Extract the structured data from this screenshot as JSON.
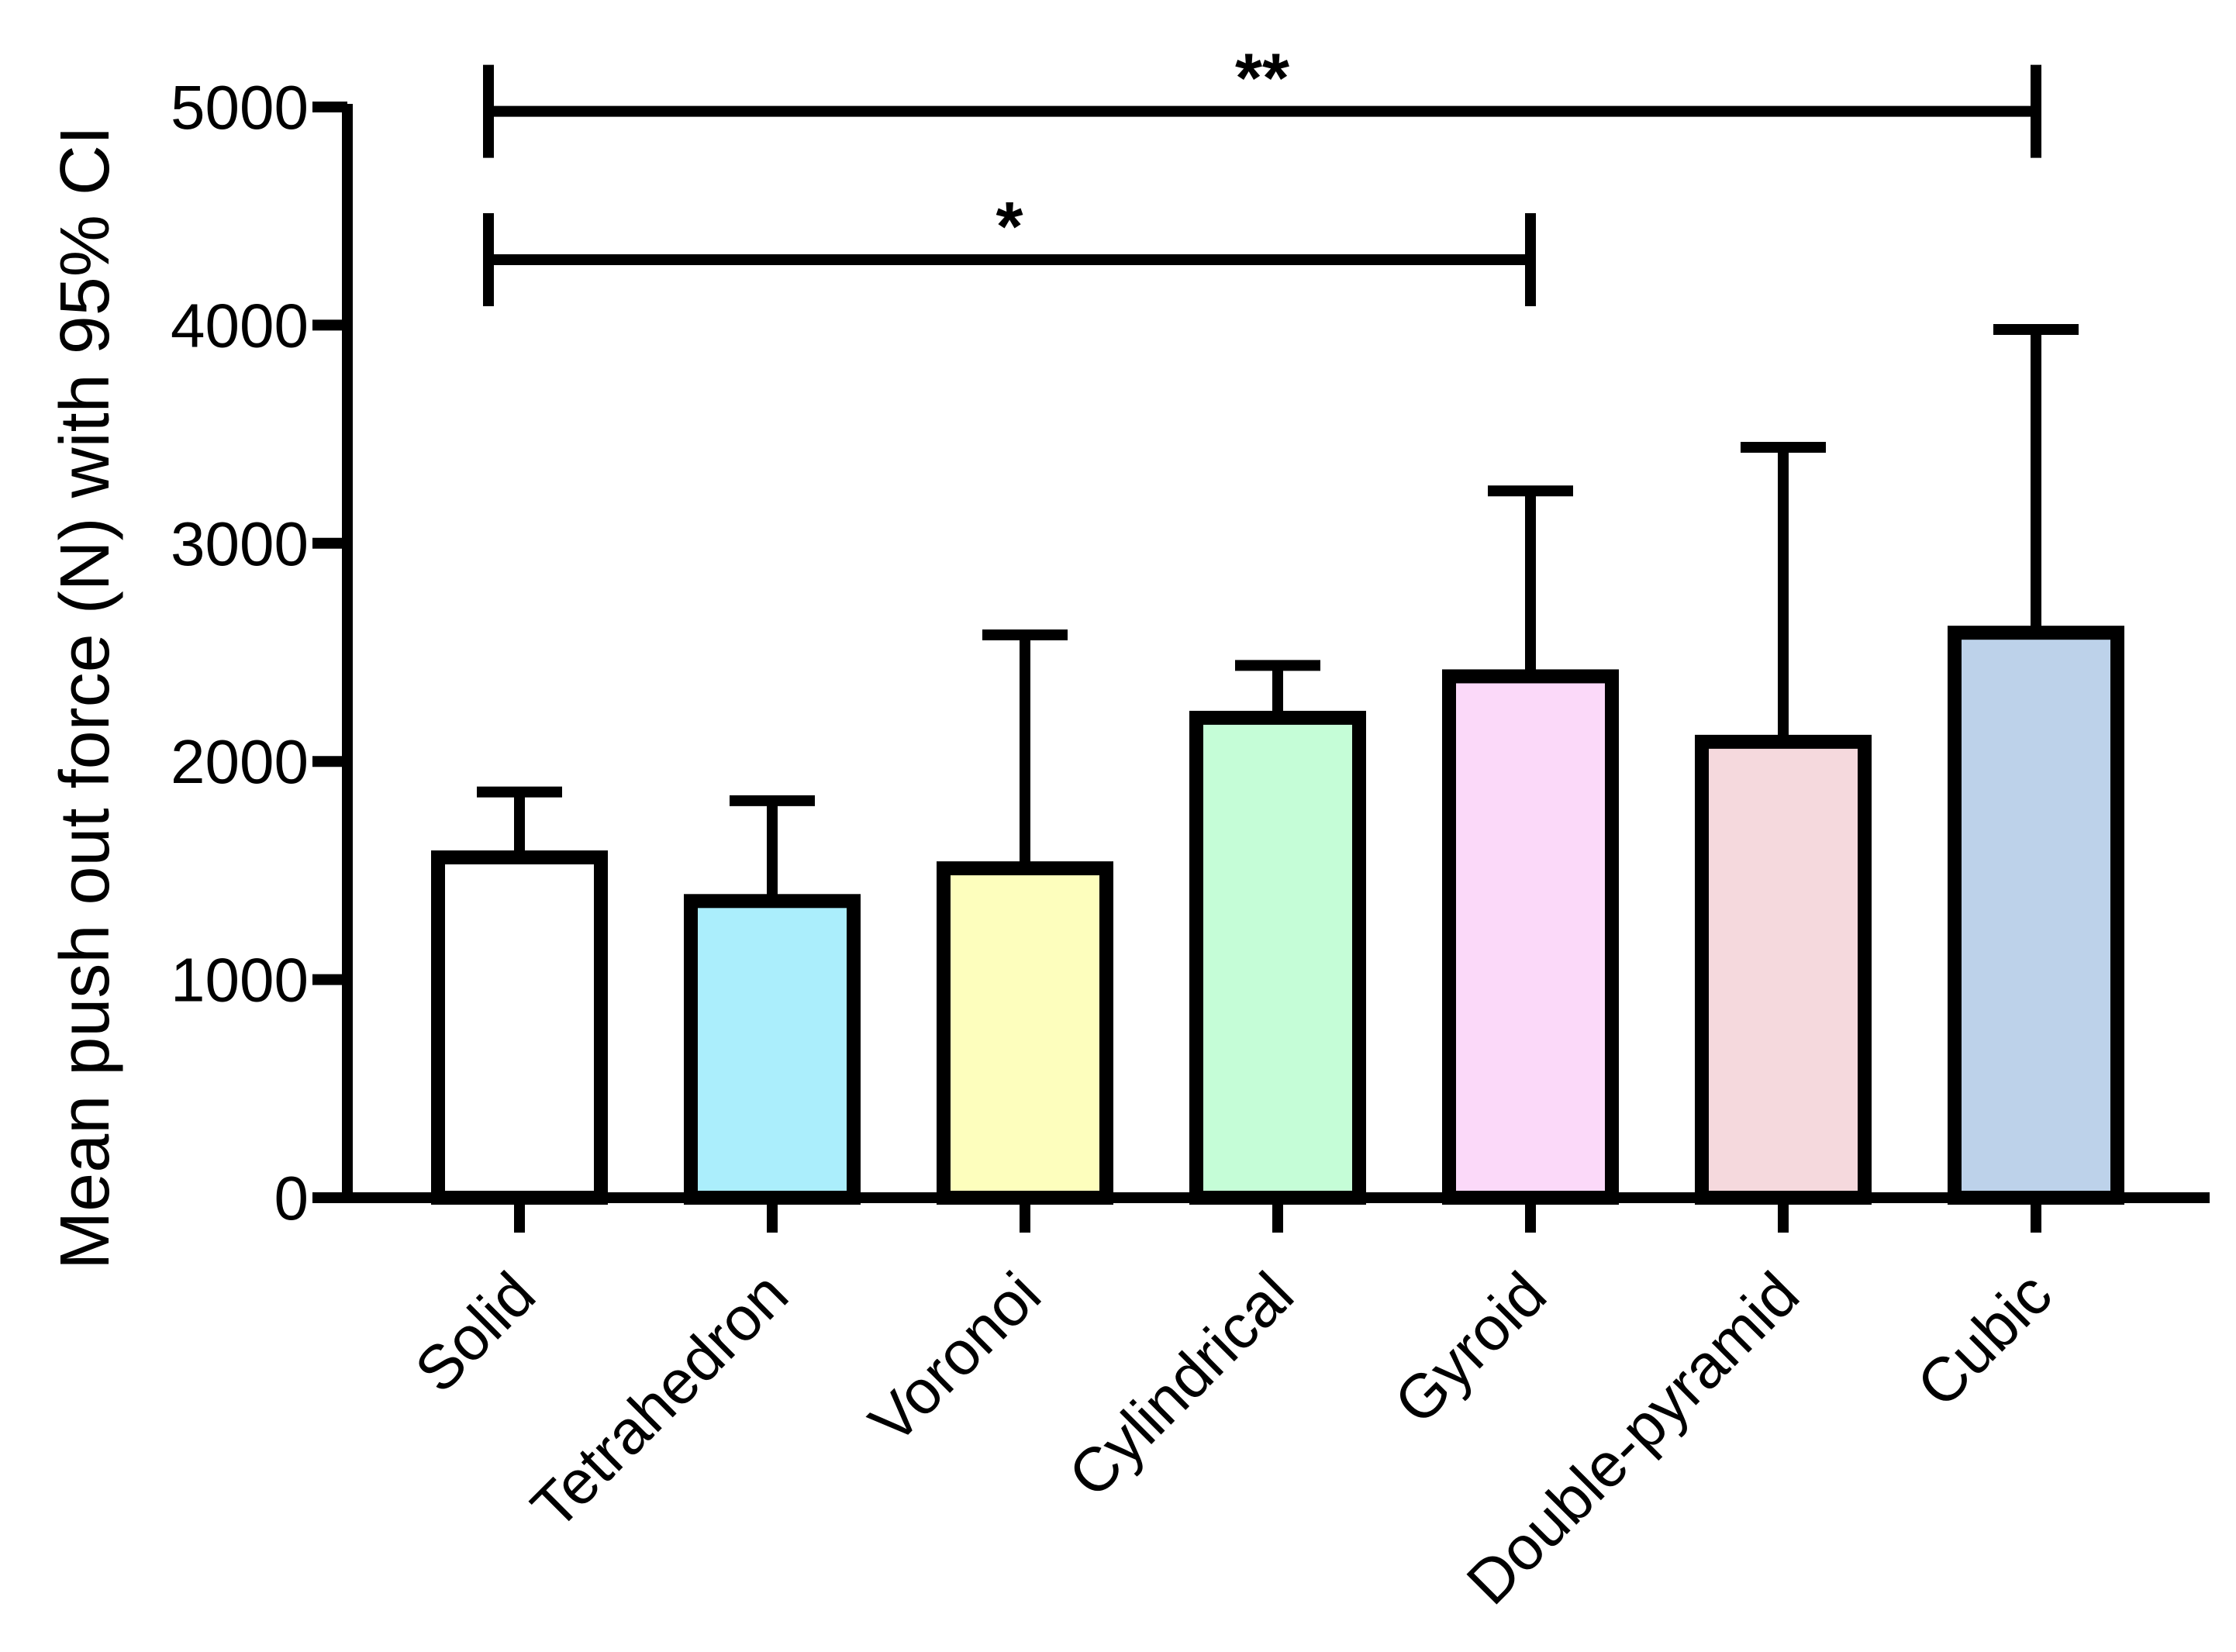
{
  "chart_data": {
    "type": "bar",
    "title": "",
    "xlabel": "",
    "ylabel": "Mean push out force (N) with 95% CI",
    "ylim": [
      0,
      5000
    ],
    "yticks": [
      0,
      1000,
      2000,
      3000,
      4000,
      5000
    ],
    "grid": false,
    "categories": [
      "Solid",
      "Tetrahedron",
      "Voronoi",
      "Cylindrical",
      "Gyroid",
      "Double-pyramid",
      "Cubic"
    ],
    "values": [
      1560,
      1360,
      1510,
      2200,
      2390,
      2090,
      2590
    ],
    "error_upper": [
      1860,
      1820,
      2580,
      2440,
      3240,
      3440,
      3980
    ],
    "colors": [
      "#ffffff",
      "#abeefc",
      "#fdfebd",
      "#c5fdd7",
      "#fbd9f9",
      "#f5d9dd",
      "#bdd2ea"
    ],
    "significance": [
      {
        "from": "Solid",
        "to": "Gyroid",
        "label": "*",
        "y": 4300
      },
      {
        "from": "Solid",
        "to": "Cubic",
        "label": "**",
        "y": 4980
      }
    ]
  }
}
